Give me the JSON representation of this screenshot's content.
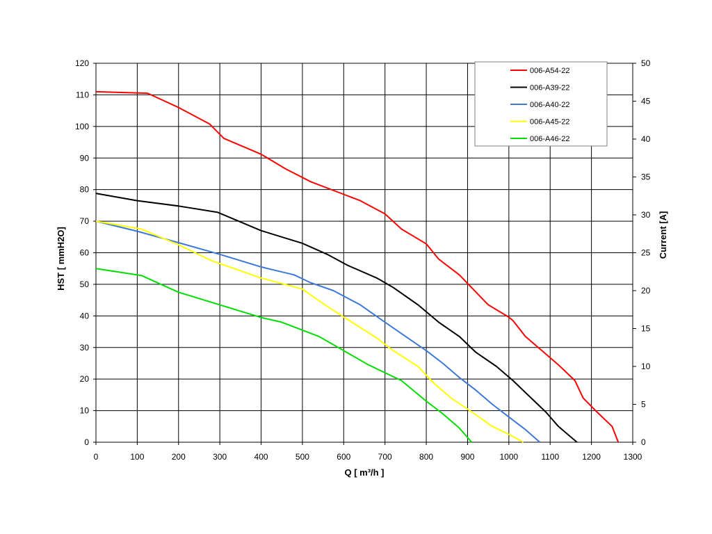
{
  "chart_data": {
    "type": "line",
    "xlabel": "Q [ m³/h ]",
    "ylabel": "HST [ mmH2O]",
    "y2label": "Current [A]",
    "xlim": [
      0,
      1300
    ],
    "ylim": [
      0,
      120
    ],
    "y2lim": [
      0,
      50
    ],
    "xticks": [
      0,
      100,
      200,
      300,
      400,
      500,
      600,
      700,
      800,
      900,
      1000,
      1100,
      1200,
      1300
    ],
    "yticks": [
      0,
      10,
      20,
      30,
      40,
      50,
      60,
      70,
      80,
      90,
      100,
      110,
      120
    ],
    "y2ticks": [
      0,
      5,
      10,
      15,
      20,
      25,
      30,
      35,
      40,
      45,
      50
    ],
    "grid": true,
    "legend_position": "top-right",
    "series": [
      {
        "name": "006-A54-22",
        "color": "#ff0000",
        "points": [
          [
            0,
            111
          ],
          [
            125,
            110.5
          ],
          [
            200,
            106
          ],
          [
            275,
            100.8
          ],
          [
            310,
            96.2
          ],
          [
            400,
            91.2
          ],
          [
            460,
            86.5
          ],
          [
            520,
            82.5
          ],
          [
            600,
            78.5
          ],
          [
            640,
            76.5
          ],
          [
            700,
            72.3
          ],
          [
            740,
            67.5
          ],
          [
            800,
            62.8
          ],
          [
            830,
            58
          ],
          [
            880,
            53
          ],
          [
            950,
            43.5
          ],
          [
            1000,
            39.6
          ],
          [
            1010,
            38.5
          ],
          [
            1040,
            33.5
          ],
          [
            1080,
            29
          ],
          [
            1120,
            24.5
          ],
          [
            1160,
            19.5
          ],
          [
            1180,
            14
          ],
          [
            1210,
            10
          ],
          [
            1250,
            5
          ],
          [
            1265,
            0
          ]
        ]
      },
      {
        "name": "006-A39-22",
        "color": "#000000",
        "points": [
          [
            0,
            78.8
          ],
          [
            100,
            76.5
          ],
          [
            200,
            74.8
          ],
          [
            295,
            72.8
          ],
          [
            400,
            67
          ],
          [
            500,
            63
          ],
          [
            560,
            59.5
          ],
          [
            610,
            56
          ],
          [
            680,
            52
          ],
          [
            720,
            49
          ],
          [
            780,
            43.5
          ],
          [
            830,
            38
          ],
          [
            880,
            33.5
          ],
          [
            920,
            28.5
          ],
          [
            970,
            24
          ],
          [
            1010,
            19.5
          ],
          [
            1050,
            14.5
          ],
          [
            1090,
            9.5
          ],
          [
            1120,
            5
          ],
          [
            1165,
            0
          ]
        ]
      },
      {
        "name": "006-A40-22",
        "color": "#3c78d8",
        "points": [
          [
            0,
            70
          ],
          [
            100,
            66.8
          ],
          [
            200,
            63.2
          ],
          [
            300,
            59.5
          ],
          [
            400,
            55.5
          ],
          [
            480,
            53
          ],
          [
            520,
            50.5
          ],
          [
            575,
            48
          ],
          [
            640,
            43.5
          ],
          [
            700,
            38
          ],
          [
            750,
            33.5
          ],
          [
            800,
            29
          ],
          [
            840,
            25
          ],
          [
            880,
            20.5
          ],
          [
            920,
            16.5
          ],
          [
            960,
            12
          ],
          [
            1000,
            8
          ],
          [
            1040,
            4
          ],
          [
            1075,
            0
          ]
        ]
      },
      {
        "name": "006-A45-22",
        "color": "#ffff00",
        "points": [
          [
            0,
            70
          ],
          [
            110,
            67.5
          ],
          [
            200,
            62.5
          ],
          [
            280,
            57.5
          ],
          [
            400,
            52
          ],
          [
            500,
            48.5
          ],
          [
            560,
            43
          ],
          [
            620,
            38
          ],
          [
            680,
            33
          ],
          [
            720,
            29
          ],
          [
            780,
            24
          ],
          [
            820,
            18.5
          ],
          [
            860,
            14
          ],
          [
            900,
            10.5
          ],
          [
            960,
            5
          ],
          [
            1000,
            2.5
          ],
          [
            1035,
            0
          ]
        ]
      },
      {
        "name": "006-A46-22",
        "color": "#00dd00",
        "points": [
          [
            0,
            55
          ],
          [
            110,
            52.8
          ],
          [
            200,
            47.5
          ],
          [
            300,
            43.5
          ],
          [
            400,
            39.5
          ],
          [
            450,
            38
          ],
          [
            540,
            33.5
          ],
          [
            600,
            29
          ],
          [
            660,
            24.5
          ],
          [
            700,
            22
          ],
          [
            740,
            19.5
          ],
          [
            800,
            13
          ],
          [
            840,
            9
          ],
          [
            880,
            4.5
          ],
          [
            910,
            0
          ]
        ]
      }
    ]
  }
}
